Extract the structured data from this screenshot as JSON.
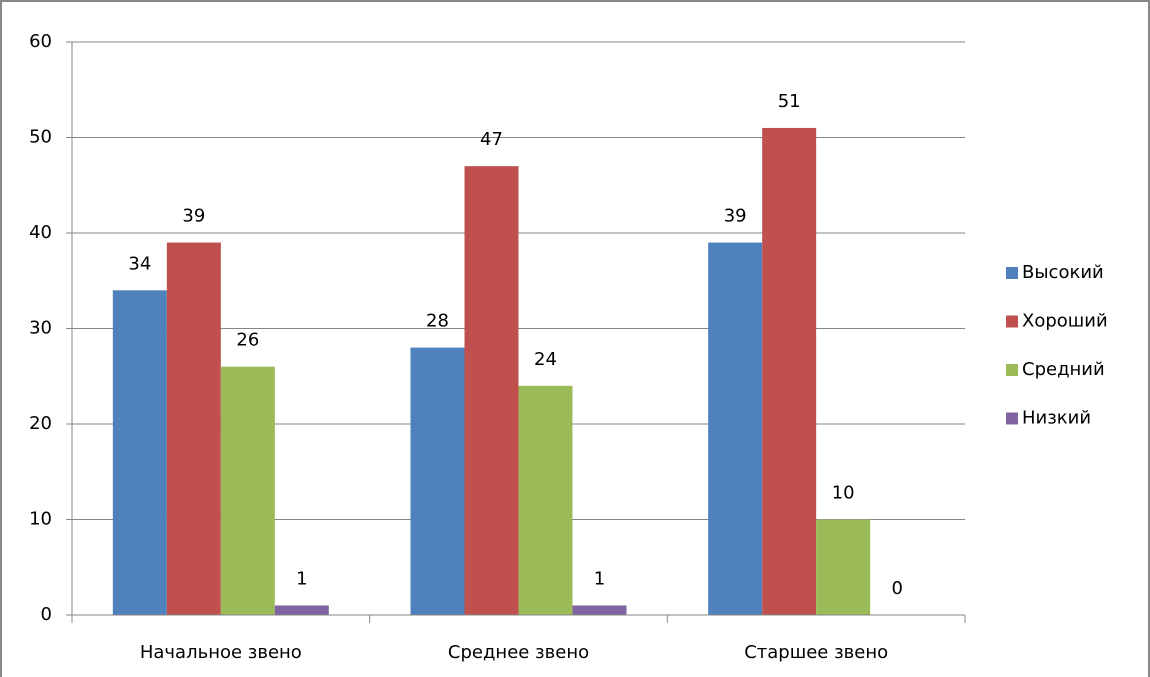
{
  "chart_data": {
    "type": "bar",
    "categories": [
      "Начальное звено",
      "Среднее звено",
      "Старшее звено"
    ],
    "series": [
      {
        "name": "Высокий",
        "color": "#4f81bd",
        "values": [
          34,
          28,
          39
        ]
      },
      {
        "name": "Хороший",
        "color": "#c0504d",
        "values": [
          39,
          47,
          51
        ]
      },
      {
        "name": "Средний",
        "color": "#9bbb59",
        "values": [
          26,
          24,
          10
        ]
      },
      {
        "name": "Низкий",
        "color": "#8064a2",
        "values": [
          1,
          1,
          0
        ]
      }
    ],
    "ylim": [
      0,
      60
    ],
    "yticks": [
      0,
      10,
      20,
      30,
      40,
      50,
      60
    ],
    "grid": true,
    "legend": "right"
  }
}
